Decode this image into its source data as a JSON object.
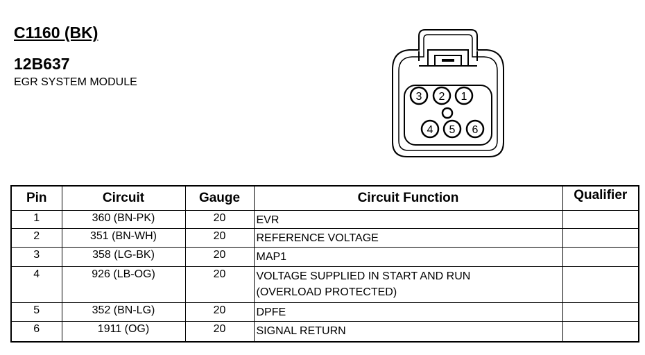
{
  "connector": {
    "id": "C1160 (BK)",
    "part_number": "12B637",
    "name": "EGR SYSTEM MODULE"
  },
  "diagram": {
    "pins": [
      "1",
      "2",
      "3",
      "4",
      "5",
      "6"
    ]
  },
  "table": {
    "headers": [
      "Pin",
      "Circuit",
      "Gauge",
      "Circuit Function",
      "Qualifier"
    ],
    "rows": [
      {
        "pin": "1",
        "circuit": "360 (BN-PK)",
        "gauge": "20",
        "function": [
          "EVR"
        ],
        "qualifier": ""
      },
      {
        "pin": "2",
        "circuit": "351 (BN-WH)",
        "gauge": "20",
        "function": [
          "REFERENCE VOLTAGE"
        ],
        "qualifier": ""
      },
      {
        "pin": "3",
        "circuit": "358 (LG-BK)",
        "gauge": "20",
        "function": [
          "MAP1"
        ],
        "qualifier": ""
      },
      {
        "pin": "4",
        "circuit": "926 (LB-OG)",
        "gauge": "20",
        "function": [
          "VOLTAGE SUPPLIED IN START AND RUN",
          "(OVERLOAD PROTECTED)"
        ],
        "qualifier": ""
      },
      {
        "pin": "5",
        "circuit": "352 (BN-LG)",
        "gauge": "20",
        "function": [
          "DPFE"
        ],
        "qualifier": ""
      },
      {
        "pin": "6",
        "circuit": "1911 (OG)",
        "gauge": "20",
        "function": [
          "SIGNAL RETURN"
        ],
        "qualifier": ""
      }
    ]
  }
}
